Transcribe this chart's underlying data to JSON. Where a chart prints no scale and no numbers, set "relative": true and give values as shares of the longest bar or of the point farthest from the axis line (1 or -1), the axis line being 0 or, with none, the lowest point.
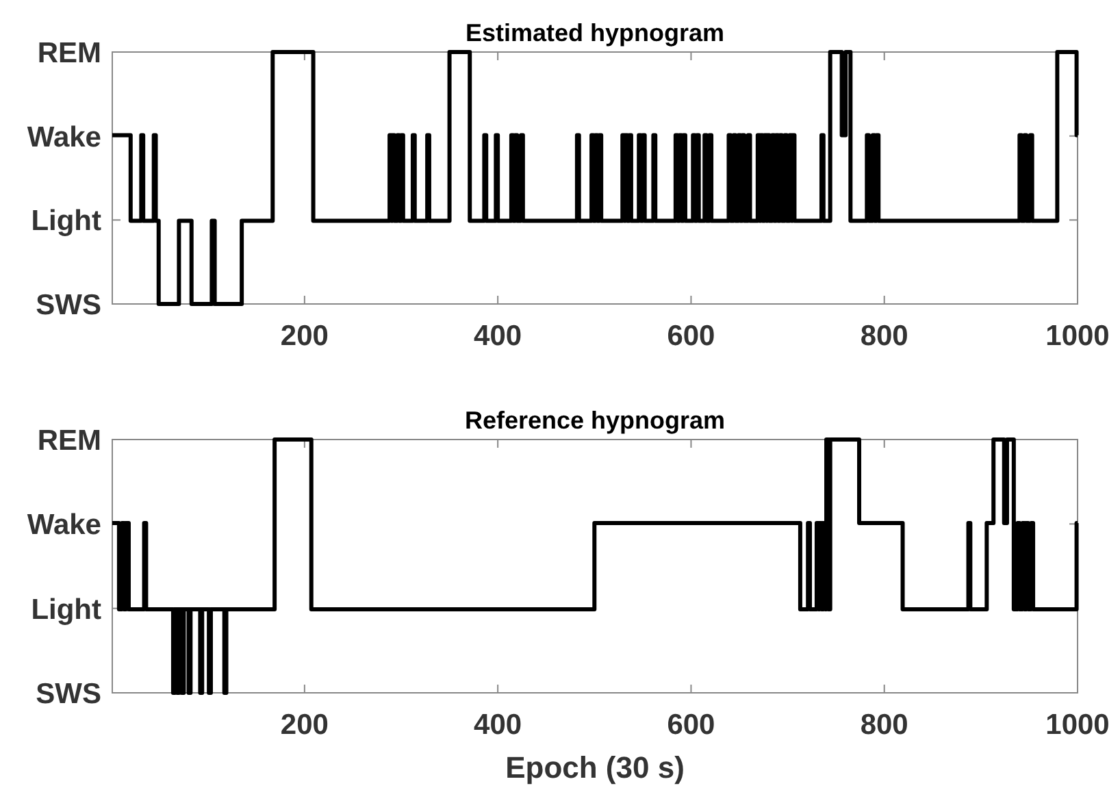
{
  "chart_data": [
    {
      "type": "step",
      "title": "Estimated hypnogram",
      "color": "#000000",
      "relative": true,
      "x": [
        1,
        20,
        31,
        33,
        44,
        46,
        49,
        70,
        83,
        104,
        107,
        135,
        167,
        209,
        288,
        290,
        291,
        293,
        296,
        298,
        300,
        302,
        312,
        314,
        327,
        329,
        350,
        371,
        386,
        388,
        398,
        400,
        414,
        416,
        418,
        420,
        424,
        426,
        482,
        484,
        497,
        499,
        501,
        503,
        505,
        507,
        529,
        531,
        532,
        534,
        536,
        538,
        546,
        548,
        550,
        552,
        561,
        563,
        584,
        586,
        588,
        590,
        592,
        594,
        602,
        604,
        606,
        608,
        614,
        616,
        619,
        621,
        639,
        641,
        644,
        646,
        649,
        651,
        653,
        655,
        659,
        661,
        669,
        671,
        672,
        674,
        676,
        678,
        679,
        681,
        684,
        686,
        688,
        690,
        692,
        694,
        697,
        699,
        702,
        704,
        705,
        707,
        735,
        737,
        744,
        756,
        760,
        765,
        782,
        784,
        788,
        790,
        792,
        794,
        940,
        942,
        945,
        947,
        951,
        953,
        979,
        999,
        1000
      ],
      "values": [
        0.67,
        0.33,
        0.67,
        0.33,
        0.67,
        0.33,
        0,
        0.33,
        0,
        0.33,
        0,
        0.33,
        1,
        0.33,
        0.67,
        0.33,
        0.67,
        0.33,
        0.67,
        0.33,
        0.67,
        0.33,
        0.67,
        0.33,
        0.67,
        0.33,
        1,
        0.33,
        0.67,
        0.33,
        0.67,
        0.33,
        0.67,
        0.33,
        0.67,
        0.33,
        0.67,
        0.33,
        0.67,
        0.33,
        0.67,
        0.33,
        0.67,
        0.33,
        0.67,
        0.33,
        0.67,
        0.33,
        0.67,
        0.33,
        0.67,
        0.33,
        0.67,
        0.33,
        0.67,
        0.33,
        0.67,
        0.33,
        0.67,
        0.33,
        0.67,
        0.33,
        0.67,
        0.33,
        0.67,
        0.33,
        0.67,
        0.33,
        0.67,
        0.33,
        0.67,
        0.33,
        0.67,
        0.33,
        0.67,
        0.33,
        0.67,
        0.33,
        0.67,
        0.33,
        0.67,
        0.33,
        0.67,
        0.33,
        0.67,
        0.33,
        0.67,
        0.33,
        0.67,
        0.33,
        0.67,
        0.33,
        0.67,
        0.33,
        0.67,
        0.33,
        0.67,
        0.33,
        0.67,
        0.33,
        0.67,
        0.33,
        0.67,
        0.33,
        1,
        0.67,
        1,
        0.33,
        0.67,
        0.33,
        0.67,
        0.33,
        0.67,
        0.33,
        0.67,
        0.33,
        0.67,
        0.33,
        0.67,
        0.33,
        1,
        0.67,
        0.67
      ],
      "xlim": [
        1,
        1000
      ],
      "xticks": [
        200,
        400,
        600,
        800,
        1000
      ],
      "y_categories": [
        "REM",
        "Wake",
        "Light",
        "SWS"
      ]
    },
    {
      "type": "step",
      "title": "Reference hypnogram",
      "xlabel": "Epoch (30 s)",
      "color": "#000000",
      "relative": true,
      "x": [
        1,
        8,
        11,
        13,
        15,
        18,
        34,
        36,
        64,
        66,
        68,
        70,
        73,
        75,
        80,
        82,
        92,
        94,
        101,
        103,
        117,
        119,
        169,
        207,
        500,
        713,
        721,
        723,
        730,
        732,
        733,
        735,
        737,
        739,
        740,
        742,
        744,
        774,
        819,
        887,
        889,
        906,
        913,
        924,
        927,
        934,
        938,
        940,
        943,
        945,
        947,
        949,
        952,
        954,
        999,
        1000
      ],
      "values": [
        0.67,
        0.33,
        0.67,
        0.33,
        0.67,
        0.33,
        0.67,
        0.33,
        0,
        0.33,
        0,
        0.33,
        0,
        0.33,
        0,
        0.33,
        0,
        0.33,
        0,
        0.33,
        0,
        0.33,
        1,
        0.33,
        0.67,
        0.33,
        0.67,
        0.33,
        0.67,
        0.33,
        0.67,
        0.33,
        0.67,
        0.33,
        1,
        0.33,
        1,
        0.67,
        0.33,
        0.67,
        0.33,
        0.67,
        1,
        0.67,
        1,
        0.33,
        0.67,
        0.33,
        0.67,
        0.33,
        0.67,
        0.33,
        0.67,
        0.33,
        0.67,
        0.67
      ],
      "xlim": [
        1,
        1000
      ],
      "xticks": [
        200,
        400,
        600,
        800,
        1000
      ],
      "y_categories": [
        "REM",
        "Wake",
        "Light",
        "SWS"
      ]
    }
  ]
}
